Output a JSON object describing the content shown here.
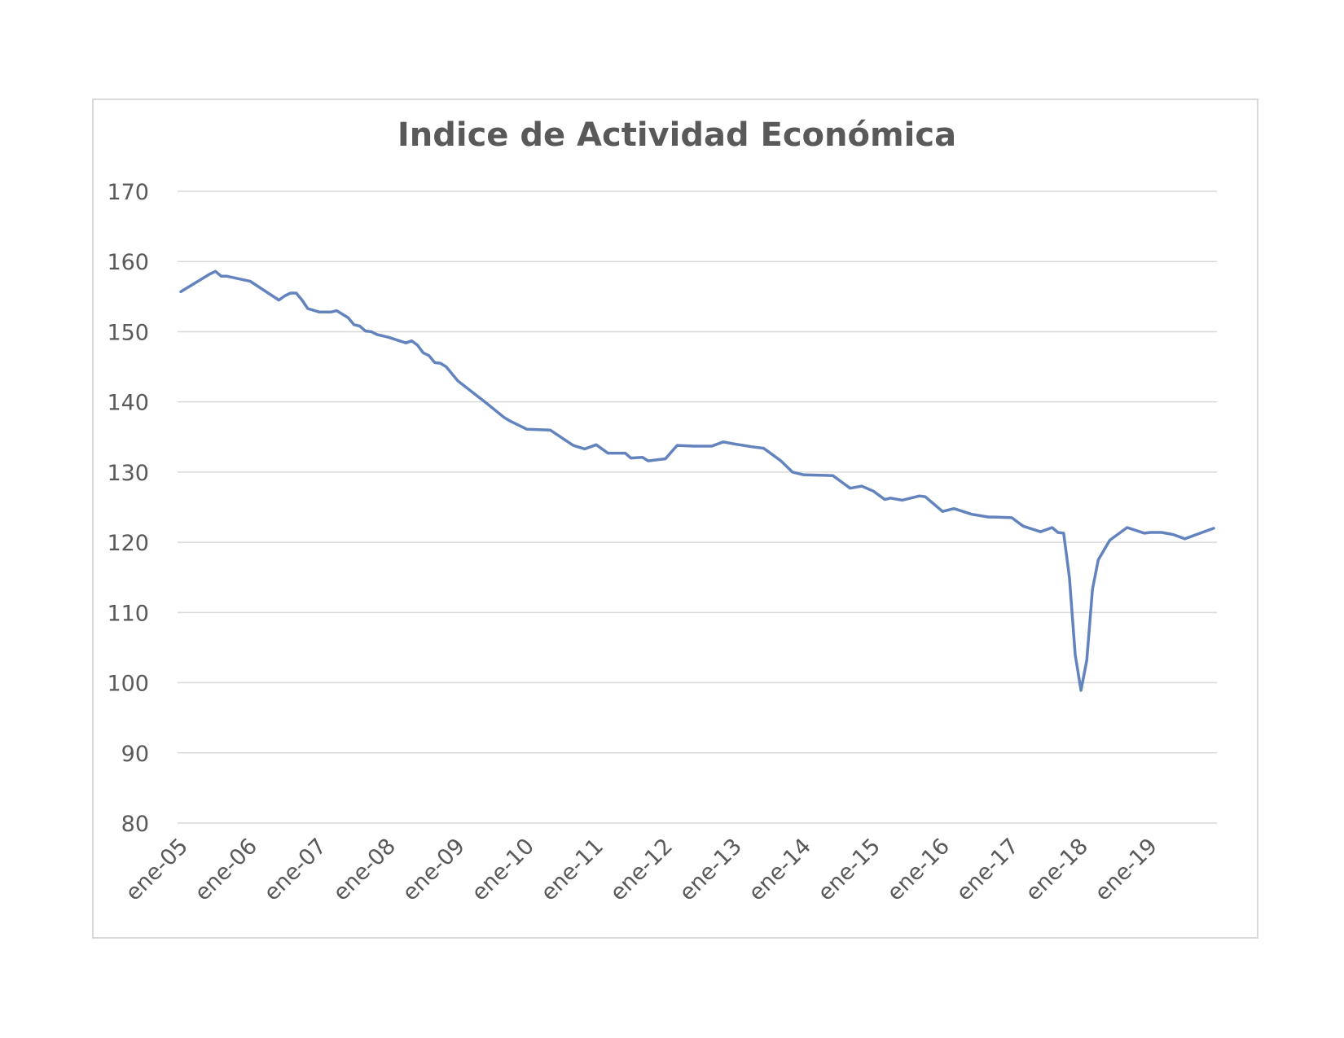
{
  "chart_data": {
    "type": "line",
    "title": "Indice de Actividad Económica",
    "xlabel": "",
    "ylabel": "",
    "ylim": [
      80,
      170
    ],
    "y_ticks": [
      80,
      90,
      100,
      110,
      120,
      130,
      140,
      150,
      160,
      170
    ],
    "x_tick_labels": [
      "ene-05",
      "ene-06",
      "ene-07",
      "ene-08",
      "ene-09",
      "ene-10",
      "ene-11",
      "ene-12",
      "ene-13",
      "ene-14",
      "ene-15",
      "ene-16",
      "ene-17",
      "ene-18",
      "ene-19"
    ],
    "grid": true,
    "legend": "none",
    "color": "#6283bd",
    "series": [
      {
        "x": [
          "2005-01",
          "2005-06",
          "2005-07",
          "2005-08",
          "2005-09",
          "2006-01",
          "2006-06",
          "2006-07",
          "2006-08",
          "2006-09",
          "2006-10",
          "2006-11",
          "2007-01",
          "2007-02",
          "2007-03",
          "2007-04",
          "2007-05",
          "2007-06",
          "2007-07",
          "2007-08",
          "2007-09",
          "2007-10",
          "2007-11",
          "2007-12",
          "2008-01",
          "2008-04",
          "2008-05",
          "2008-06",
          "2008-07",
          "2008-08",
          "2008-09",
          "2008-10",
          "2008-11",
          "2008-12",
          "2009-01",
          "2009-06",
          "2009-09",
          "2009-10",
          "2010-01",
          "2010-05",
          "2010-09",
          "2010-11",
          "2011-01",
          "2011-03",
          "2011-06",
          "2011-07",
          "2011-09",
          "2011-10",
          "2012-01",
          "2012-03",
          "2012-06",
          "2012-09",
          "2012-11",
          "2013-01",
          "2013-04",
          "2013-06",
          "2013-09",
          "2013-11",
          "2014-01",
          "2014-06",
          "2014-08",
          "2014-09",
          "2014-11",
          "2015-01",
          "2015-03",
          "2015-04",
          "2015-06",
          "2015-09",
          "2015-10",
          "2016-01",
          "2016-03",
          "2016-06",
          "2016-09",
          "2016-10",
          "2017-01",
          "2017-03",
          "2017-06",
          "2017-08",
          "2017-09",
          "2017-10",
          "2017-11",
          "2017-12",
          "2018-01",
          "2018-02",
          "2018-03",
          "2018-04",
          "2018-06",
          "2018-09",
          "2018-12",
          "2019-01",
          "2019-03",
          "2019-05",
          "2019-07",
          "2019-09",
          "2019-12"
        ],
        "y": [
          155.7,
          158.2,
          158.6,
          157.9,
          157.9,
          157.2,
          154.5,
          155.1,
          155.5,
          155.5,
          154.5,
          153.3,
          152.8,
          152.8,
          152.8,
          153.0,
          152.5,
          152.0,
          151.0,
          150.8,
          150.1,
          150.0,
          149.6,
          149.4,
          149.2,
          148.4,
          148.7,
          148.1,
          147.0,
          146.6,
          145.6,
          145.5,
          145.0,
          144.0,
          143.0,
          139.8,
          137.8,
          137.3,
          136.1,
          136.0,
          133.8,
          133.3,
          133.9,
          132.7,
          132.7,
          132.0,
          132.1,
          131.6,
          131.9,
          133.8,
          133.7,
          133.7,
          134.3,
          134.0,
          133.6,
          133.4,
          131.6,
          130.0,
          129.6,
          129.5,
          128.3,
          127.7,
          128.0,
          127.3,
          126.1,
          126.3,
          126.0,
          126.6,
          126.5,
          124.4,
          124.8,
          124.0,
          123.6,
          123.6,
          123.5,
          122.3,
          121.5,
          122.1,
          121.4,
          121.3,
          115.0,
          104.0,
          98.9,
          103.2,
          113.3,
          117.5,
          120.3,
          122.1,
          121.3,
          121.4,
          121.4,
          121.1,
          120.5,
          121.1,
          122.0
        ]
      }
    ]
  }
}
